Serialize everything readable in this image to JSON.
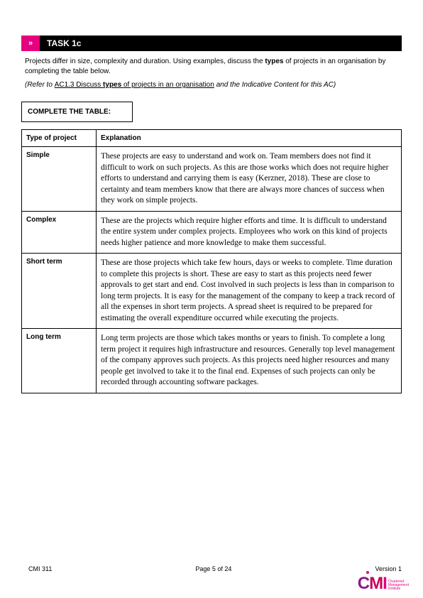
{
  "header": {
    "arrow": "»",
    "title": "TASK 1c"
  },
  "intro_pre": "Projects differ in size, complexity and duration. Using examples, discuss the ",
  "intro_bold": "types",
  "intro_post": " of projects in an organisation by completing the table below.",
  "refer_pre": "(Refer to ",
  "refer_ac_a": "AC1.3 Discuss ",
  "refer_ac_b": "types",
  "refer_ac_c": " of projects in an organisation",
  "refer_post": " and the Indicative Content for this AC)",
  "complete_label": "COMPLETE THE TABLE:",
  "table": {
    "head_type": "Type of project",
    "head_explain": "Explanation",
    "rows": [
      {
        "type": "Simple",
        "explain": "These projects are easy to understand and work on. Team members does not find it difficult to work on such projects. As this are those works which does not require higher efforts to understand and carrying them is easy (Kerzner, 2018). These are close to certainty and team members know that there are always more chances of success when they work on simple projects."
      },
      {
        "type": "Complex",
        "explain": "These are the projects which require higher efforts and time. It is difficult to understand the entire system under complex projects. Employees who work on this kind of projects needs higher patience and more knowledge to make them successful."
      },
      {
        "type": "Short term",
        "explain": "These are those projects which take few hours, days or weeks to complete. Time duration to complete this projects is short. These are easy to start as this projects need fewer approvals to get start and end. Cost involved in such projects is less than in comparison to long term projects. It is easy for the management of the company to keep a track record of all the expenses in short term projects. A spread sheet is required to be prepared for estimating the overall expenditure occurred while executing the projects."
      },
      {
        "type": "Long term",
        "explain": "Long term projects are those which takes months or years to finish. To complete a long term project it requires high infrastructure and resources. Generally top level management of the company approves such projects. As this projects need higher resources and many people get involved to take it to the final end. Expenses of such projects can only be recorded through accounting software packages."
      }
    ]
  },
  "footer": {
    "left": "CMI 311",
    "center": "Page 5 of 24",
    "right": "Version 1"
  },
  "logo": {
    "c": "C",
    "m": "M",
    "i": "I",
    "sub1": "Chartered",
    "sub2": "Management",
    "sub3": "Institute"
  }
}
